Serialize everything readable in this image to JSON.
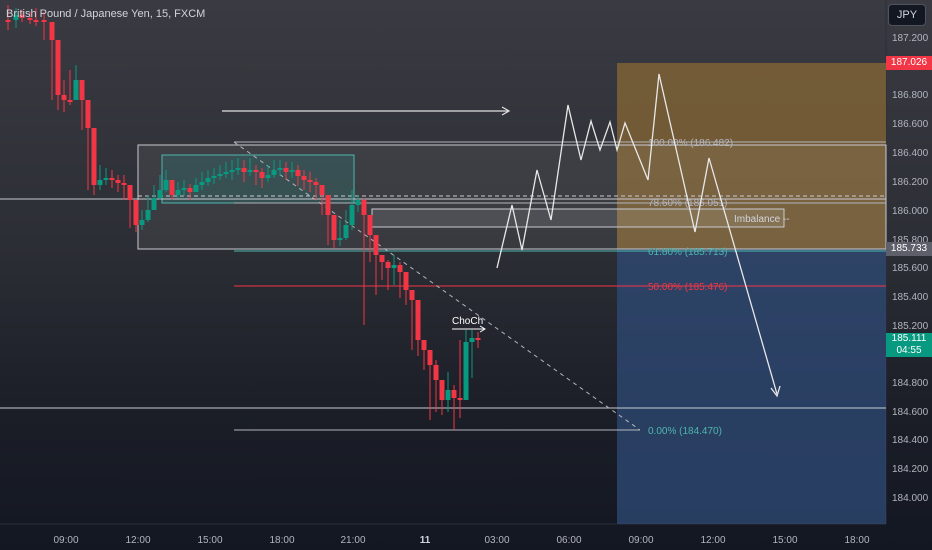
{
  "header": {
    "symbol_title": "British Pound / Japanese Yen, 15, FXCM",
    "currency_button": "JPY"
  },
  "price_axis": {
    "ticks": [
      "187.200",
      "186.800",
      "186.600",
      "186.400",
      "186.200",
      "186.000",
      "185.800",
      "185.600",
      "185.400",
      "185.200",
      "184.800",
      "184.600",
      "184.400",
      "184.200",
      "184.000"
    ],
    "tags": [
      {
        "text": "187.026",
        "color": "#f23645"
      },
      {
        "text": "185.733",
        "color": "#5d606b"
      },
      {
        "text": "185.111",
        "sub": "04:55",
        "color": "#089981"
      }
    ]
  },
  "time_axis": {
    "ticks": [
      "09:00",
      "12:00",
      "15:00",
      "18:00",
      "21:00",
      "11",
      "03:00",
      "06:00",
      "09:00",
      "12:00",
      "15:00",
      "18:00"
    ]
  },
  "annotations": {
    "fib_100": "100.00% (186.482)",
    "fib_786": "78.60% (186.051)",
    "fib_618": "61.80% (185.713)",
    "fib_500": "50.00% (185.476)",
    "fib_0": "0.00% (184.470)",
    "imbalance": "Imbalance --",
    "choch": "ChoCh"
  },
  "colors": {
    "bull": "#089981",
    "bear": "#f23645",
    "target_zone": "#8a6a35",
    "stop_zone": "#2f4c7a"
  },
  "chart_data": {
    "type": "candlestick",
    "instrument": "British Pound / Japanese Yen",
    "timeframe": "15",
    "ylim": [
      183.9,
      187.4
    ],
    "price_levels": {
      "fib_100": 186.482,
      "fib_786": 186.051,
      "fib_618": 185.713,
      "fib_500": 185.476,
      "fib_0": 184.47,
      "target_tag": 187.026,
      "mid_tag": 185.733,
      "current": 185.111
    }
  }
}
